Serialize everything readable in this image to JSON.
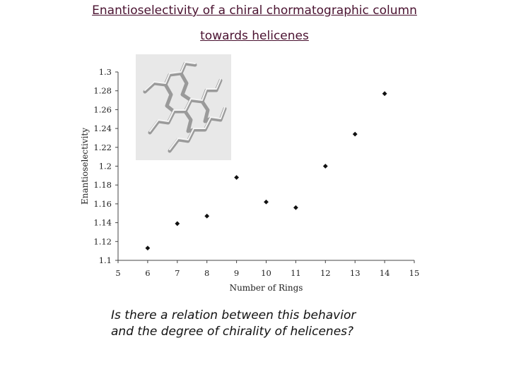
{
  "title": {
    "line1": "Enantioselectivity of a chiral chormatographic column",
    "line2": "towards helicenes"
  },
  "question": {
    "line1": "Is there a relation between this behavior",
    "line2": "and the degree of chirality of helicenes?"
  },
  "chart_data": {
    "type": "scatter",
    "xlabel": "Number of Rings",
    "ylabel": "Enantioselectivity",
    "xlim": [
      5,
      15
    ],
    "ylim": [
      1.1,
      1.3
    ],
    "x_ticks": [
      "5",
      "6",
      "7",
      "8",
      "9",
      "10",
      "11",
      "12",
      "13",
      "14",
      "15"
    ],
    "y_ticks": [
      "1.1",
      "1.12",
      "1.14",
      "1.16",
      "1.18",
      "1.2",
      "1.22",
      "1.24",
      "1.26",
      "1.28",
      "1.3"
    ],
    "grid": false,
    "marker": "diamond",
    "marker_color": "#111111",
    "series": [
      {
        "x": [
          6,
          7,
          8,
          9,
          10,
          11,
          12,
          13,
          14
        ],
        "y": [
          1.113,
          1.139,
          1.147,
          1.188,
          1.162,
          1.156,
          1.2,
          1.234,
          1.277
        ]
      }
    ]
  },
  "inset_image": {
    "icon": "helicene-molecule-3d-model",
    "background": "#e8e8e8"
  }
}
